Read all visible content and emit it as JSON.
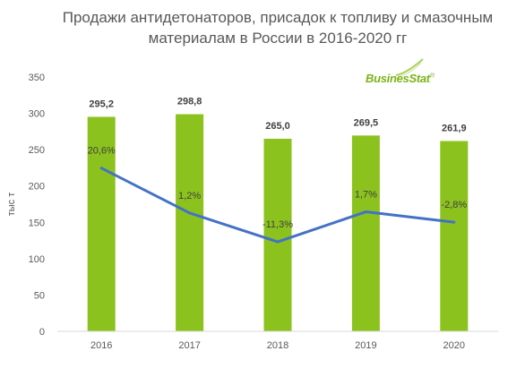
{
  "chart_data": {
    "type": "bar",
    "title": "Продажи антидетонаторов, присадок к топливу и смазочным материалам в России в 2016-2020 гг",
    "ylabel": "тыс т",
    "ylim": [
      0,
      350
    ],
    "yticks": [
      0,
      50,
      100,
      150,
      200,
      250,
      300,
      350
    ],
    "categories": [
      "2016",
      "2017",
      "2018",
      "2019",
      "2020"
    ],
    "series": [
      {
        "values": [
          295.2,
          298.8,
          265.0,
          269.5,
          261.9
        ],
        "labels": [
          "295,2",
          "298,8",
          "265,0",
          "269,5",
          "261,9"
        ],
        "color": "#8cc21d"
      },
      {
        "type": "line",
        "values": [
          20.6,
          1.2,
          -11.3,
          1.7,
          -2.8
        ],
        "labels": [
          "20,6%",
          "1,2%",
          "-11,3%",
          "1,7%",
          "-2,8%"
        ],
        "color": "#4472c4"
      }
    ],
    "grid": false
  },
  "logo": {
    "text": "BusinesStat",
    "mark": "®"
  }
}
